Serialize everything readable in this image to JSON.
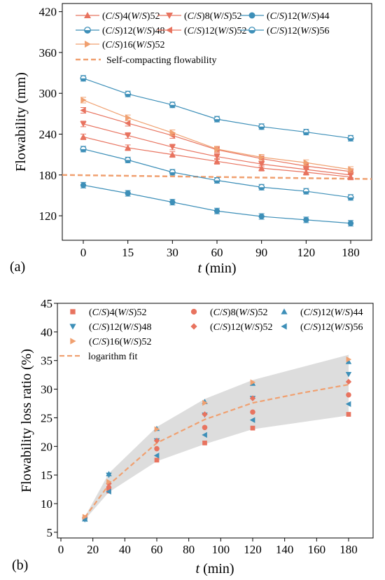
{
  "chart_data": [
    {
      "type": "line",
      "panel_label": "(a)",
      "xlabel_var": "t",
      "xlabel_unit": " (min)",
      "ylabel": "Flowability (mm)",
      "categories": [
        "0",
        "15",
        "30",
        "60",
        "90",
        "120",
        "180"
      ],
      "ylim": [
        84,
        432
      ],
      "yticks": [
        120,
        180,
        240,
        300,
        360,
        420
      ],
      "legend_position": "top",
      "threshold": {
        "name": "Self-compacting flowability",
        "y_start": 180,
        "y_end": 174,
        "color": "#f0a070"
      },
      "series": [
        {
          "name": "(C/S)4(W/S)52",
          "marker": "triangle-up",
          "color": "#e8735f",
          "values": [
            236,
            220,
            210,
            200,
            190,
            184,
            177
          ]
        },
        {
          "name": "(C/S)8(W/S)52",
          "marker": "triangle-down",
          "color": "#e8735f",
          "values": [
            255,
            238,
            221,
            207,
            196,
            188,
            180
          ]
        },
        {
          "name": "(C/S)12(W/S)44",
          "marker": "circle-filled",
          "color": "#3d8fb8",
          "values": [
            165,
            153,
            140,
            127,
            119,
            114,
            109
          ]
        },
        {
          "name": "(C/S)12(W/S)48",
          "marker": "circle-half",
          "color": "#3d8fb8",
          "values": [
            218,
            202,
            184,
            172,
            162,
            156,
            147
          ]
        },
        {
          "name": "(C/S)12(W/S)52",
          "marker": "triangle-left",
          "color": "#e8735f",
          "values": [
            275,
            256,
            238,
            217,
            204,
            193,
            185
          ]
        },
        {
          "name": "(C/S)12(W/S)56",
          "marker": "circle-half",
          "color": "#3d8fb8",
          "values": [
            322,
            299,
            283,
            262,
            251,
            243,
            234
          ]
        },
        {
          "name": "(C/S)16(W/S)52",
          "marker": "triangle-right",
          "color": "#f0a070",
          "values": [
            290,
            264,
            242,
            218,
            206,
            198,
            188
          ]
        }
      ]
    },
    {
      "type": "scatter",
      "panel_label": "(b)",
      "xlabel_var": "t",
      "xlabel_unit": " (min)",
      "ylabel": "Flowability loss ratio (%)",
      "xlim": [
        0,
        190
      ],
      "xticks": [
        0,
        20,
        40,
        60,
        80,
        100,
        120,
        140,
        160,
        180
      ],
      "ylim": [
        4,
        45
      ],
      "yticks": [
        5,
        10,
        15,
        20,
        25,
        30,
        35,
        40,
        45
      ],
      "legend_position": "top",
      "x": [
        15,
        30,
        60,
        90,
        120,
        180
      ],
      "series": [
        {
          "name": "(C/S)4(W/S)52",
          "marker": "square",
          "color": "#e8735f",
          "values": [
            7.5,
            12.2,
            17.6,
            20.6,
            23.2,
            25.6
          ]
        },
        {
          "name": "(C/S)8(W/S)52",
          "marker": "circle",
          "color": "#e8735f",
          "values": [
            7.5,
            12.8,
            19.6,
            23.3,
            26.0,
            29.0
          ]
        },
        {
          "name": "(C/S)12(W/S)44",
          "marker": "triangle-up",
          "color": "#3d8fb8",
          "values": [
            7.3,
            15.2,
            23.1,
            27.8,
            31.0,
            34.8
          ]
        },
        {
          "name": "(C/S)12(W/S)48",
          "marker": "triangle-down",
          "color": "#3d8fb8",
          "values": [
            7.2,
            15.0,
            21.0,
            25.5,
            28.4,
            32.6
          ]
        },
        {
          "name": "(C/S)12(W/S)52",
          "marker": "diamond",
          "color": "#e8735f",
          "values": [
            7.5,
            13.5,
            21.0,
            25.6,
            28.4,
            31.3
          ]
        },
        {
          "name": "(C/S)12(W/S)56",
          "marker": "triangle-left",
          "color": "#3d8fb8",
          "values": [
            7.3,
            12.1,
            18.4,
            22.0,
            24.6,
            27.4
          ]
        },
        {
          "name": "(C/S)16(W/S)52",
          "marker": "triangle-right",
          "color": "#f0a070",
          "values": [
            7.7,
            13.8,
            23.0,
            27.6,
            31.2,
            35.2
          ]
        }
      ],
      "fit": {
        "name": "logarithm fit",
        "color": "#f0a070",
        "x": [
          15,
          30,
          60,
          90,
          120,
          150,
          180
        ],
        "values": [
          7.6,
          13.3,
          20.6,
          24.7,
          27.6,
          29.3,
          30.8
        ]
      },
      "band": {
        "x": [
          15,
          30,
          60,
          90,
          120,
          180
        ],
        "upper": [
          7.7,
          15.3,
          23.4,
          28.3,
          31.6,
          36.0
        ],
        "lower": [
          7.2,
          12.0,
          17.4,
          20.4,
          23.0,
          25.4
        ],
        "color": "#dddddd"
      }
    }
  ]
}
